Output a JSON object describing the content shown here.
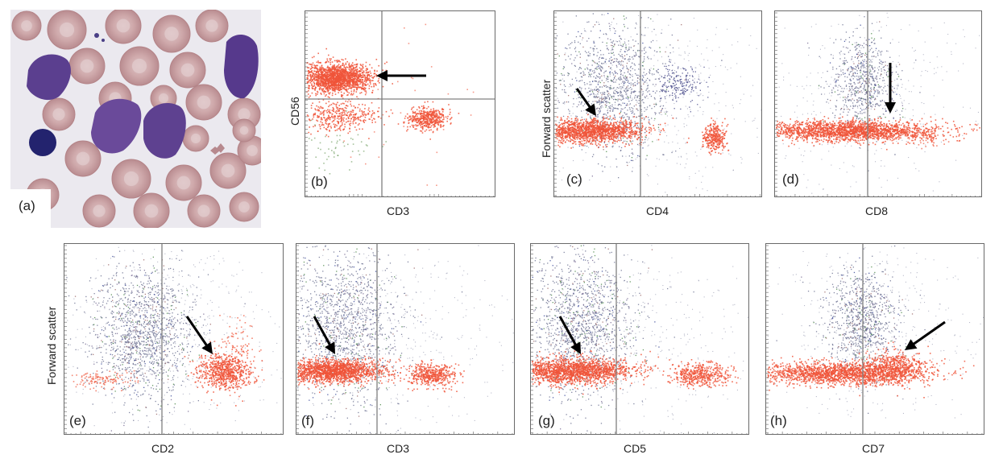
{
  "figure": {
    "panel_labels": [
      "(a)",
      "(b)",
      "(c)",
      "(d)",
      "(e)",
      "(f)",
      "(g)",
      "(h)"
    ],
    "x_labels": {
      "b": "CD3",
      "c": "CD4",
      "d": "CD8",
      "e": "CD2",
      "f": "CD3",
      "g": "CD5",
      "h": "CD7"
    },
    "y_labels": {
      "b": "CD56",
      "c": "Forward scatter",
      "e": "Forward scatter"
    }
  },
  "colors": {
    "population_highlight": "#f0553a",
    "other_events": "#6f7393",
    "quadrant_line": "#808080",
    "frame": "#6a6a6a",
    "arrow": "#000000",
    "cell_nucleus": "#5a3f8e",
    "erythrocyte": "#c9a3a4"
  },
  "icons": {
    "arrow": "arrow-icon",
    "micrograph": "blood-smear-micrograph"
  }
}
